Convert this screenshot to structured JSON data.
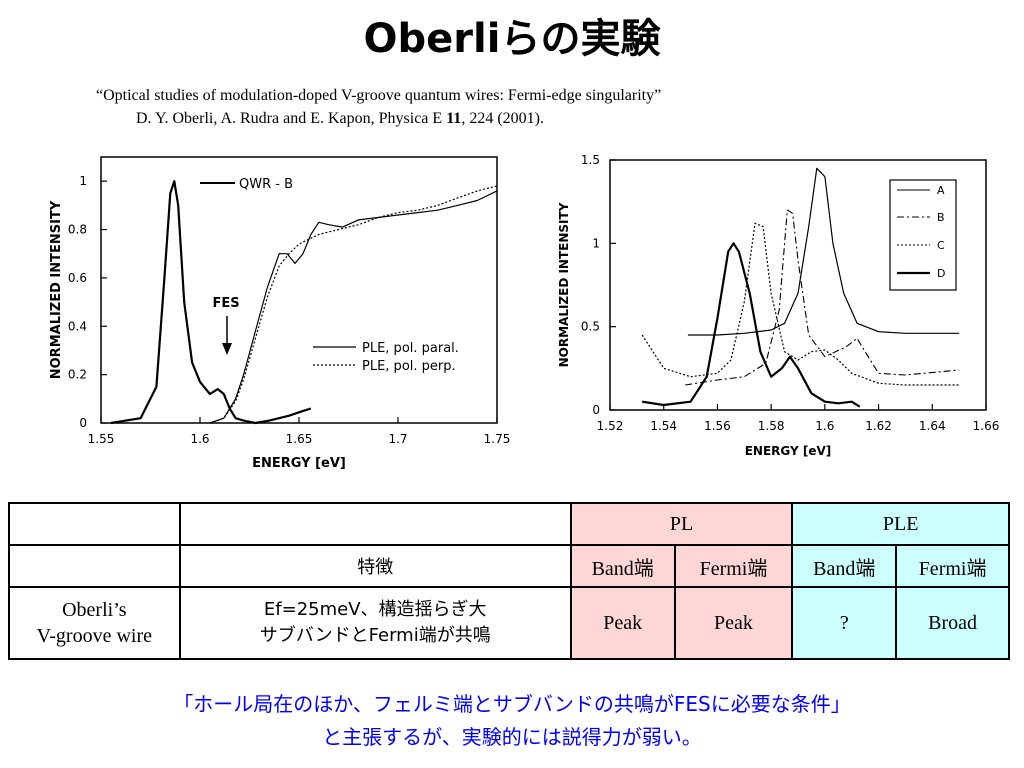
{
  "title": "Oberliらの実験",
  "reference": {
    "line1": "“Optical studies of modulation-doped V-groove quantum wires: Fermi-edge singularity”",
    "authors": "D. Y. Oberli, A. Rudra and E. Kapon, Physica E ",
    "volume": "11",
    "rest": ", 224 (2001)."
  },
  "chart_data": [
    {
      "type": "line",
      "xlabel": "ENERGY [eV]",
      "ylabel": "NORMALIZED INTENSITY",
      "xlim": [
        1.55,
        1.75
      ],
      "ylim": [
        0,
        1.1
      ],
      "xticks": [
        "1.55",
        "1.6",
        "1.65",
        "1.7",
        "1.75"
      ],
      "yticks": [
        "0",
        "0.2",
        "0.4",
        "0.6",
        "0.8",
        "1"
      ],
      "annotation": "FES",
      "legend_top": "QWR - B",
      "series": [
        {
          "name": "QWR - B",
          "style": "solid-thick",
          "x": [
            1.555,
            1.57,
            1.578,
            1.582,
            1.585,
            1.587,
            1.589,
            1.592,
            1.596,
            1.6,
            1.605,
            1.609,
            1.612,
            1.615,
            1.618,
            1.622,
            1.628,
            1.635,
            1.645,
            1.652,
            1.656
          ],
          "y": [
            0.0,
            0.02,
            0.15,
            0.6,
            0.95,
            1.0,
            0.9,
            0.5,
            0.25,
            0.17,
            0.12,
            0.14,
            0.12,
            0.06,
            0.02,
            0.01,
            0.0,
            0.01,
            0.03,
            0.05,
            0.06
          ]
        },
        {
          "name": "PLE, pol. paral.",
          "style": "solid",
          "x": [
            1.605,
            1.612,
            1.618,
            1.622,
            1.628,
            1.634,
            1.64,
            1.644,
            1.648,
            1.652,
            1.656,
            1.66,
            1.665,
            1.672,
            1.68,
            1.69,
            1.7,
            1.71,
            1.72,
            1.73,
            1.74,
            1.75
          ],
          "y": [
            0.0,
            0.02,
            0.1,
            0.2,
            0.38,
            0.56,
            0.7,
            0.7,
            0.66,
            0.7,
            0.78,
            0.83,
            0.82,
            0.81,
            0.84,
            0.85,
            0.86,
            0.87,
            0.88,
            0.9,
            0.92,
            0.96
          ]
        },
        {
          "name": "PLE, pol. perp.",
          "style": "dotted",
          "x": [
            1.605,
            1.612,
            1.618,
            1.622,
            1.628,
            1.634,
            1.64,
            1.645,
            1.65,
            1.66,
            1.67,
            1.68,
            1.69,
            1.7,
            1.71,
            1.72,
            1.73,
            1.74,
            1.75
          ],
          "y": [
            0.0,
            0.02,
            0.09,
            0.18,
            0.35,
            0.52,
            0.65,
            0.7,
            0.74,
            0.78,
            0.8,
            0.82,
            0.85,
            0.87,
            0.88,
            0.9,
            0.93,
            0.96,
            0.98
          ]
        }
      ]
    },
    {
      "type": "line",
      "xlabel": "ENERGY [eV]",
      "ylabel": "NORMALIZED INTENSITY",
      "xlim": [
        1.52,
        1.66
      ],
      "ylim": [
        0,
        1.5
      ],
      "xticks": [
        "1.52",
        "1.54",
        "1.56",
        "1.58",
        "1.6",
        "1.62",
        "1.64",
        "1.66"
      ],
      "yticks": [
        "0",
        "0.5",
        "1",
        "1.5"
      ],
      "legend_placement": "top-right",
      "series": [
        {
          "name": "A",
          "style": "solid",
          "x": [
            1.549,
            1.56,
            1.57,
            1.58,
            1.585,
            1.59,
            1.594,
            1.597,
            1.6,
            1.603,
            1.607,
            1.612,
            1.62,
            1.63,
            1.64,
            1.65
          ],
          "y": [
            0.45,
            0.45,
            0.46,
            0.48,
            0.52,
            0.7,
            1.1,
            1.45,
            1.4,
            1.0,
            0.7,
            0.52,
            0.47,
            0.46,
            0.46,
            0.46
          ]
        },
        {
          "name": "B",
          "style": "dash-dot",
          "x": [
            1.548,
            1.56,
            1.57,
            1.578,
            1.583,
            1.586,
            1.588,
            1.59,
            1.594,
            1.6,
            1.608,
            1.612,
            1.615,
            1.62,
            1.63,
            1.65
          ],
          "y": [
            0.15,
            0.18,
            0.2,
            0.28,
            0.6,
            1.2,
            1.18,
            0.9,
            0.45,
            0.32,
            0.38,
            0.43,
            0.35,
            0.22,
            0.21,
            0.24
          ]
        },
        {
          "name": "C",
          "style": "dotted",
          "x": [
            1.532,
            1.54,
            1.55,
            1.56,
            1.565,
            1.57,
            1.574,
            1.577,
            1.58,
            1.585,
            1.59,
            1.595,
            1.6,
            1.605,
            1.61,
            1.62,
            1.63,
            1.65
          ],
          "y": [
            0.45,
            0.25,
            0.2,
            0.22,
            0.3,
            0.65,
            1.12,
            1.1,
            0.7,
            0.35,
            0.3,
            0.35,
            0.36,
            0.3,
            0.22,
            0.16,
            0.15,
            0.15
          ]
        },
        {
          "name": "D",
          "style": "solid-thick",
          "x": [
            1.532,
            1.54,
            1.55,
            1.556,
            1.56,
            1.564,
            1.566,
            1.568,
            1.572,
            1.576,
            1.58,
            1.584,
            1.587,
            1.59,
            1.595,
            1.6,
            1.605,
            1.61,
            1.613
          ],
          "y": [
            0.05,
            0.03,
            0.05,
            0.2,
            0.55,
            0.95,
            1.0,
            0.95,
            0.7,
            0.35,
            0.2,
            0.25,
            0.32,
            0.25,
            0.1,
            0.05,
            0.04,
            0.05,
            0.02
          ]
        }
      ]
    }
  ],
  "table": {
    "header": {
      "pl": "PL",
      "ple": "PLE"
    },
    "subheader": {
      "feature": "特徴",
      "pl_band": "Band端",
      "pl_fermi": "Fermi端",
      "ple_band": "Band端",
      "ple_fermi": "Fermi端"
    },
    "row": {
      "name_line1": "Oberli’s",
      "name_line2": "V-groove wire",
      "feature_line1": "Ef=25meV、構造揺らぎ大",
      "feature_line2": "サブバンドとFermi端が共鳴",
      "pl_band": "Peak",
      "pl_fermi": "Peak",
      "ple_band": "?",
      "ple_fermi": "Broad"
    }
  },
  "conclusion": {
    "line1": "「ホール局在のほか、フェルミ端とサブバンドの共鳴がFESに必要な条件」",
    "line2": "と主張するが、実験的には説得力が弱い。"
  }
}
